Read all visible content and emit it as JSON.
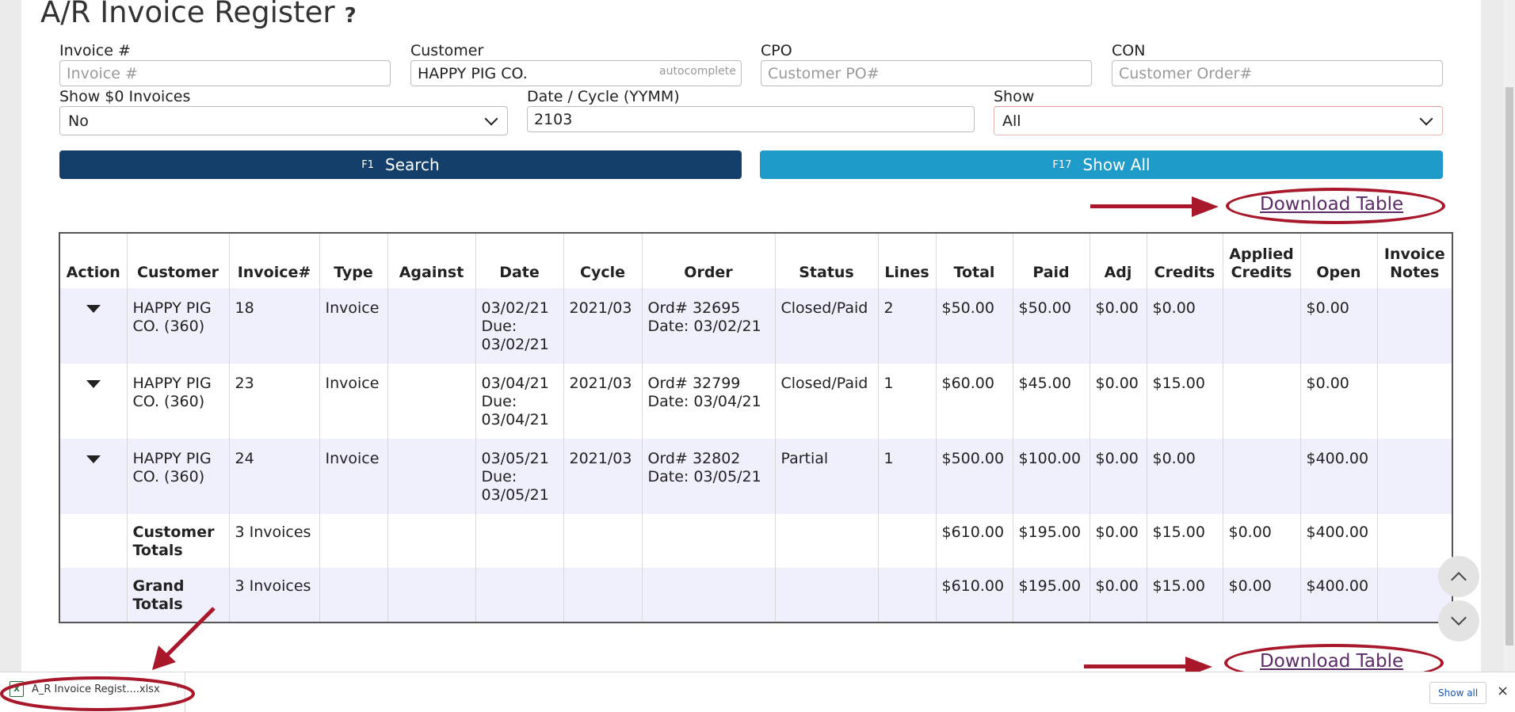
{
  "header": {
    "title": "A/R Invoice Register",
    "help": "?"
  },
  "filters": {
    "invoice": {
      "label": "Invoice #",
      "placeholder": "Invoice #",
      "value": ""
    },
    "customer": {
      "label": "Customer",
      "value": "HAPPY PIG CO.",
      "hint": "autocomplete"
    },
    "cpo": {
      "label": "CPO",
      "placeholder": "Customer PO#",
      "value": ""
    },
    "con": {
      "label": "CON",
      "placeholder": "Customer Order#",
      "value": ""
    },
    "show_zero": {
      "label": "Show $0 Invoices",
      "value": "No"
    },
    "date_cycle": {
      "label": "Date / Cycle (YYMM)",
      "value": "2103"
    },
    "show": {
      "label": "Show",
      "value": "All"
    }
  },
  "buttons": {
    "search": {
      "fkey": "F1",
      "label": "Search"
    },
    "show_all": {
      "fkey": "F17",
      "label": "Show All"
    }
  },
  "download_label": "Download Table",
  "table": {
    "headers": [
      "Action",
      "Customer",
      "Invoice#",
      "Type",
      "Against",
      "Date",
      "Cycle",
      "Order",
      "Status",
      "Lines",
      "Total",
      "Paid",
      "Adj",
      "Credits",
      "Applied Credits",
      "Open",
      "Invoice Notes"
    ],
    "rows": [
      {
        "customer": "HAPPY PIG CO. (360)",
        "invoice": "18",
        "type": "Invoice",
        "against": "",
        "date": "03/02/21",
        "due": "Due: 03/02/21",
        "cycle": "2021/03",
        "order": "Ord# 32695",
        "order_date": "Date: 03/02/21",
        "status": "Closed/Paid",
        "lines": "2",
        "total": "$50.00",
        "paid": "$50.00",
        "adj": "$0.00",
        "credits": "$0.00",
        "applied": "",
        "open": "$0.00",
        "notes": ""
      },
      {
        "customer": "HAPPY PIG CO. (360)",
        "invoice": "23",
        "type": "Invoice",
        "against": "",
        "date": "03/04/21",
        "due": "Due: 03/04/21",
        "cycle": "2021/03",
        "order": "Ord# 32799",
        "order_date": "Date: 03/04/21",
        "status": "Closed/Paid",
        "lines": "1",
        "total": "$60.00",
        "paid": "$45.00",
        "adj": "$0.00",
        "credits": "$15.00",
        "applied": "",
        "open": "$0.00",
        "notes": ""
      },
      {
        "customer": "HAPPY PIG CO. (360)",
        "invoice": "24",
        "type": "Invoice",
        "against": "",
        "date": "03/05/21",
        "due": "Due: 03/05/21",
        "cycle": "2021/03",
        "order": "Ord# 32802",
        "order_date": "Date: 03/05/21",
        "status": "Partial",
        "lines": "1",
        "total": "$500.00",
        "paid": "$100.00",
        "adj": "$0.00",
        "credits": "$0.00",
        "applied": "",
        "open": "$400.00",
        "notes": ""
      }
    ],
    "customer_totals": {
      "label": "Customer Totals",
      "count": "3 Invoices",
      "total": "$610.00",
      "paid": "$195.00",
      "adj": "$0.00",
      "credits": "$15.00",
      "applied": "$0.00",
      "open": "$400.00"
    },
    "grand_totals": {
      "label": "Grand Totals",
      "count": "3 Invoices",
      "total": "$610.00",
      "paid": "$195.00",
      "adj": "$0.00",
      "credits": "$15.00",
      "applied": "$0.00",
      "open": "$400.00"
    }
  },
  "download_bar": {
    "file": "A_R Invoice Regist....xlsx",
    "show_all": "Show all",
    "close": "×"
  },
  "colors": {
    "search_button": "#143f6b",
    "show_all_button": "#1f9bc9",
    "annotation": "#a8182a",
    "row_shade": "#eff0fb"
  },
  "icons": {
    "file": "excel-file-icon",
    "expand": "caret-down-icon",
    "scroll_up": "chevron-up-icon",
    "scroll_down": "chevron-down-icon"
  }
}
